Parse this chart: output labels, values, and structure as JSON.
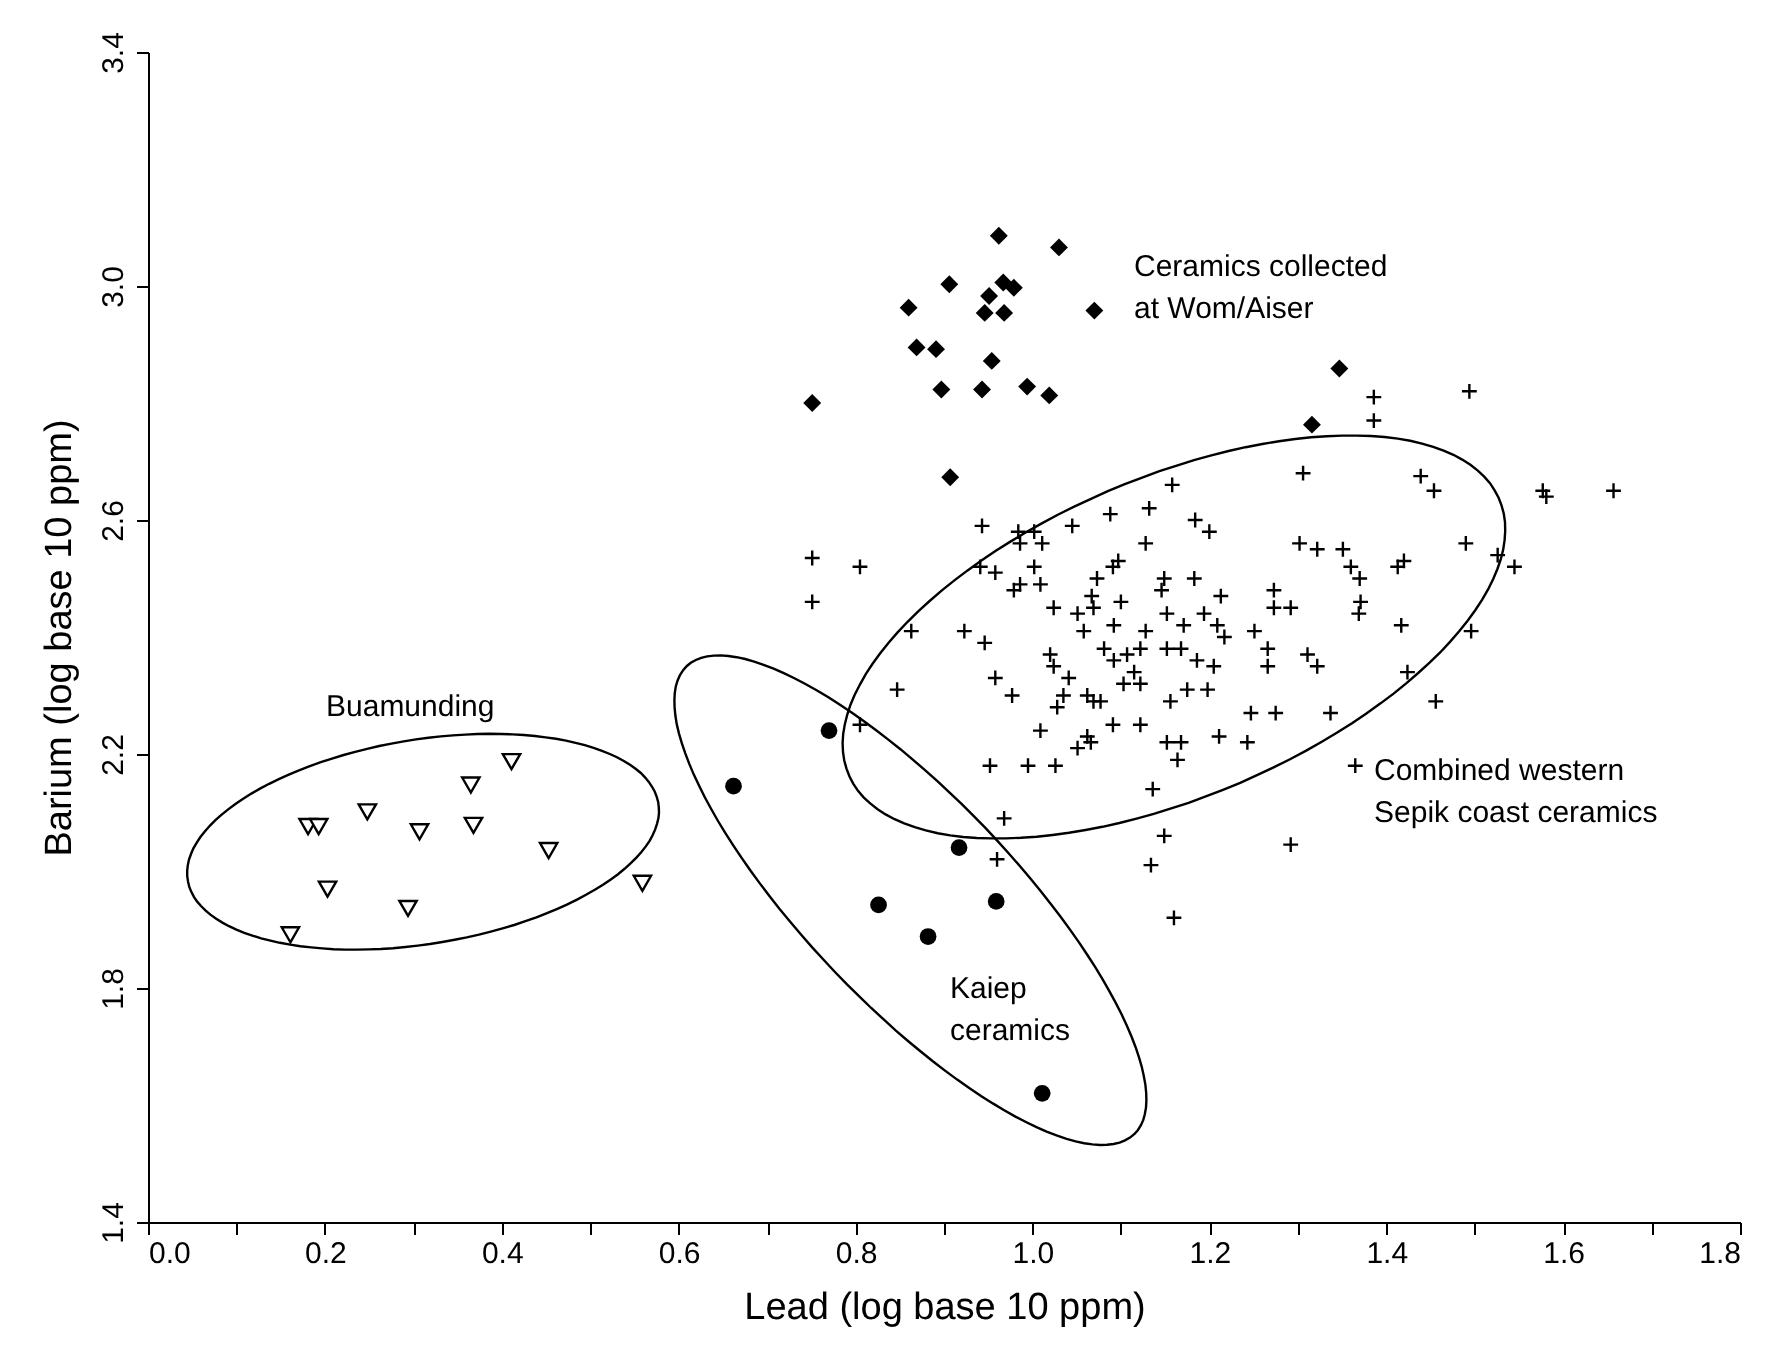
{
  "chart_data": {
    "type": "scatter",
    "xlabel": "Lead (log base 10 ppm)",
    "ylabel": "Barium (log base 10 ppm)",
    "xlim": [
      0,
      1.8
    ],
    "ylim": [
      1.4,
      3.4
    ],
    "xticks": [
      {
        "value": 0,
        "label": "0.0"
      },
      {
        "value": 0.1,
        "label": null
      },
      0.2,
      {
        "value": 0.3,
        "label": null
      },
      0.4,
      {
        "value": 0.5,
        "label": null
      },
      0.6,
      {
        "value": 0.7,
        "label": null
      },
      0.8,
      {
        "value": 0.9,
        "label": null
      },
      {
        "value": 1,
        "label": "1.0"
      },
      {
        "value": 1.1,
        "label": null
      },
      1.2,
      {
        "value": 1.3,
        "label": null
      },
      1.4,
      {
        "value": 1.5,
        "label": null
      },
      1.6,
      {
        "value": 1.7,
        "label": null
      },
      1.8
    ],
    "yticks": [
      1.4,
      1.8,
      2.2,
      2.6,
      {
        "value": 3,
        "label": "3.0"
      },
      3.4
    ],
    "series": [
      {
        "marker": "triangle",
        "color": "#000000",
        "x": [
          0.181,
          0.193,
          0.248,
          0.307,
          0.365,
          0.368,
          0.411,
          0.453,
          0.559,
          0.203,
          0.294,
          0.161
        ],
        "values": [
          2.076,
          2.076,
          2.101,
          2.067,
          2.147,
          2.078,
          2.187,
          2.035,
          1.979,
          1.969,
          1.936,
          1.891
        ]
      },
      {
        "marker": "circle",
        "color": "#000000",
        "x": [
          0.662,
          0.77,
          0.826,
          0.882,
          0.917,
          0.959,
          1.011
        ],
        "values": [
          2.145,
          2.24,
          1.942,
          1.888,
          2.04,
          1.948,
          1.62
        ]
      },
      {
        "marker": "diamond",
        "color": "#000000",
        "x": [
          0.962,
          1.03,
          0.906,
          0.86,
          0.951,
          0.967,
          0.979,
          0.946,
          0.968,
          1.07,
          0.869,
          0.891,
          0.954,
          0.897,
          0.943,
          0.994,
          1.019,
          0.751,
          0.907,
          1.347,
          1.316
        ],
        "values": [
          3.086,
          3.066,
          3.003,
          2.963,
          2.983,
          3.006,
          2.997,
          2.954,
          2.954,
          2.958,
          2.895,
          2.892,
          2.872,
          2.823,
          2.823,
          2.828,
          2.813,
          2.8,
          2.673,
          2.859,
          2.763
        ]
      },
      {
        "marker": "cross",
        "color": "#000000",
        "x": [
          0.805,
          0.863,
          0.847,
          0.805,
          0.923,
          0.946,
          0.958,
          0.977,
          0.952,
          0.995,
          1.026,
          1.009,
          0.943,
          0.941,
          0.958,
          0.984,
          1.002,
          1.011,
          0.986,
          1.045,
          1.088,
          1.132,
          1.158,
          1.128,
          1.184,
          1.2,
          1.002,
          0.986,
          1.009,
          0.979,
          1.024,
          1.051,
          1.069,
          1.067,
          1.073,
          1.091,
          1.097,
          1.1,
          1.092,
          1.128,
          1.149,
          1.146,
          1.183,
          1.213,
          1.152,
          1.171,
          1.194,
          1.209,
          1.217,
          1.02,
          1.024,
          1.041,
          1.035,
          1.028,
          1.058,
          1.081,
          1.092,
          1.107,
          1.122,
          1.115,
          1.122,
          1.103,
          1.062,
          1.069,
          1.077,
          1.091,
          1.122,
          1.156,
          1.175,
          1.186,
          1.205,
          1.198,
          1.152,
          1.168,
          1.062,
          1.051,
          1.066,
          1.152,
          1.168,
          1.164,
          1.211,
          1.136,
          1.149,
          1.134,
          1.16,
          0.96,
          0.968,
          1.386,
          1.386,
          1.494,
          1.306,
          1.439,
          1.454,
          1.577,
          1.581,
          1.657,
          1.49,
          1.526,
          1.545,
          1.302,
          1.322,
          1.351,
          1.36,
          1.37,
          1.371,
          1.369,
          1.413,
          1.42,
          1.417,
          1.496,
          1.424,
          1.456,
          1.365,
          1.292,
          1.337,
          1.275,
          1.311,
          1.322,
          1.292,
          1.273,
          1.273,
          1.266,
          1.266,
          1.251,
          1.247,
          1.243,
          0.751,
          0.751
        ],
        "values": [
          2.52,
          2.41,
          2.31,
          2.25,
          2.41,
          2.39,
          2.33,
          2.3,
          2.18,
          2.18,
          2.18,
          2.24,
          2.59,
          2.52,
          2.51,
          2.58,
          2.58,
          2.56,
          2.56,
          2.59,
          2.61,
          2.62,
          2.66,
          2.56,
          2.6,
          2.58,
          2.52,
          2.49,
          2.49,
          2.48,
          2.45,
          2.44,
          2.45,
          2.47,
          2.5,
          2.52,
          2.53,
          2.46,
          2.42,
          2.41,
          2.5,
          2.48,
          2.5,
          2.47,
          2.44,
          2.42,
          2.44,
          2.42,
          2.4,
          2.37,
          2.35,
          2.33,
          2.3,
          2.28,
          2.41,
          2.38,
          2.36,
          2.37,
          2.38,
          2.34,
          2.32,
          2.32,
          2.3,
          2.29,
          2.29,
          2.25,
          2.25,
          2.29,
          2.31,
          2.36,
          2.35,
          2.31,
          2.38,
          2.38,
          2.23,
          2.21,
          2.22,
          2.22,
          2.22,
          2.19,
          2.23,
          2.14,
          2.06,
          2.01,
          1.92,
          2.02,
          2.09,
          2.81,
          2.77,
          2.82,
          2.68,
          2.675,
          2.65,
          2.65,
          2.64,
          2.65,
          2.56,
          2.54,
          2.52,
          2.56,
          2.55,
          2.55,
          2.52,
          2.5,
          2.46,
          2.44,
          2.52,
          2.53,
          2.42,
          2.41,
          2.34,
          2.29,
          2.18,
          2.045,
          2.27,
          2.27,
          2.37,
          2.35,
          2.45,
          2.48,
          2.45,
          2.35,
          2.38,
          2.41,
          2.27,
          2.22,
          2.535,
          2.46
        ]
      }
    ],
    "annotations": [
      "Ceramics collected\nat Wom/Aiser",
      "Buamunding",
      "Kaiep\nceramics",
      "Combined western\nSepik coast ceramics"
    ]
  }
}
